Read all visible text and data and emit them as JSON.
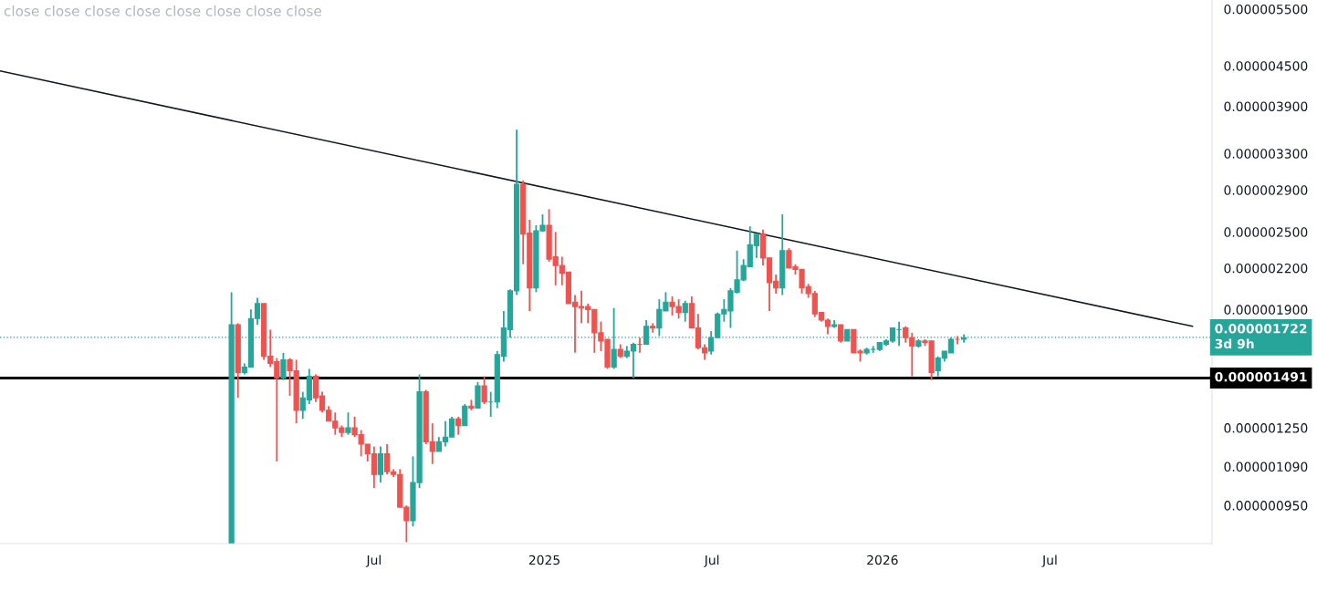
{
  "chart_data": {
    "type": "candlestick",
    "x": [
      "2024-01-29",
      "2024-02-05",
      "2024-02-12",
      "2024-02-19",
      "2024-02-26",
      "2024-03-04",
      "2024-03-11",
      "2024-03-18",
      "2024-03-25",
      "2024-04-01",
      "2024-04-08",
      "2024-04-15",
      "2024-04-22",
      "2024-04-29",
      "2024-05-06",
      "2024-05-13",
      "2024-05-20",
      "2024-05-27",
      "2024-06-03",
      "2024-06-10",
      "2024-06-17",
      "2024-06-24",
      "2024-07-01",
      "2024-07-08",
      "2024-07-15",
      "2024-07-22",
      "2024-07-29",
      "2024-08-05",
      "2024-08-12",
      "2024-08-19",
      "2024-08-26",
      "2024-09-02",
      "2024-09-09",
      "2024-09-16",
      "2024-09-23",
      "2024-09-30",
      "2024-10-07",
      "2024-10-14",
      "2024-10-21",
      "2024-10-28",
      "2024-11-04",
      "2024-11-11",
      "2024-11-18",
      "2024-11-25",
      "2024-12-02",
      "2024-12-09",
      "2024-12-16",
      "2024-12-23",
      "2024-12-30",
      "2025-01-06",
      "2025-01-13",
      "2025-01-20",
      "2025-01-27",
      "2025-02-03",
      "2025-02-10",
      "2025-02-17",
      "2025-02-24",
      "2025-03-03",
      "2025-03-10",
      "2025-03-17",
      "2025-03-24",
      "2025-03-31",
      "2025-04-07",
      "2025-04-14",
      "2025-04-21",
      "2025-04-28",
      "2025-05-05",
      "2025-05-12",
      "2025-05-19",
      "2025-05-26",
      "2025-06-02",
      "2025-06-09",
      "2025-06-16",
      "2025-06-23",
      "2025-06-30",
      "2025-07-07",
      "2025-07-14",
      "2025-07-21",
      "2025-07-28",
      "2025-08-04",
      "2025-08-11",
      "2025-08-18",
      "2025-08-25",
      "2025-09-01",
      "2025-09-08",
      "2025-09-15",
      "2025-09-22",
      "2025-09-29",
      "2025-10-06",
      "2025-10-13",
      "2025-10-20",
      "2025-10-27",
      "2025-11-03",
      "2025-11-10",
      "2025-11-17",
      "2025-11-24",
      "2025-12-01",
      "2025-12-08",
      "2025-12-15",
      "2025-12-22",
      "2025-12-29",
      "2026-01-05",
      "2026-01-12",
      "2026-01-19",
      "2026-01-26",
      "2026-02-02",
      "2026-02-09",
      "2026-02-16",
      "2026-02-23",
      "2026-03-02",
      "2026-03-09",
      "2026-03-16",
      "2026-03-23",
      "2026-03-30"
    ],
    "ohlc": [
      [
        8.32e-07,
        2.02e-06,
        8.32e-07,
        1.8e-06
      ],
      [
        1.8e-06,
        1.81e-06,
        1.39e-06,
        1.52e-06
      ],
      [
        1.52e-06,
        1.57e-06,
        1.51e-06,
        1.55e-06
      ],
      [
        1.55e-06,
        1.9e-06,
        1.55e-06,
        1.84e-06
      ],
      [
        1.84e-06,
        1.98e-06,
        1.8e-06,
        1.94e-06
      ],
      [
        1.94e-06,
        1.94e-06,
        1.59e-06,
        1.61e-06
      ],
      [
        1.61e-06,
        1.77e-06,
        1.55e-06,
        1.57e-06
      ],
      [
        1.58e-06,
        1.6e-06,
        1.11e-06,
        1.49e-06
      ],
      [
        1.49e-06,
        1.63e-06,
        1.48e-06,
        1.59e-06
      ],
      [
        1.59e-06,
        1.6e-06,
        1.4e-06,
        1.53e-06
      ],
      [
        1.53e-06,
        1.59e-06,
        1.27e-06,
        1.33e-06
      ],
      [
        1.33e-06,
        1.42e-06,
        1.29e-06,
        1.39e-06
      ],
      [
        1.38e-06,
        1.54e-06,
        1.36e-06,
        1.5e-06
      ],
      [
        1.5e-06,
        1.51e-06,
        1.37e-06,
        1.39e-06
      ],
      [
        1.4e-06,
        1.42e-06,
        1.32e-06,
        1.33e-06
      ],
      [
        1.33e-06,
        1.35e-06,
        1.28e-06,
        1.28e-06
      ],
      [
        1.28e-06,
        1.32e-06,
        1.22e-06,
        1.25e-06
      ],
      [
        1.25e-06,
        1.26e-06,
        1.21e-06,
        1.23e-06
      ],
      [
        1.23e-06,
        1.32e-06,
        1.22e-06,
        1.25e-06
      ],
      [
        1.25e-06,
        1.3e-06,
        1.21e-06,
        1.22e-06
      ],
      [
        1.22e-06,
        1.24e-06,
        1.13e-06,
        1.18e-06
      ],
      [
        1.18e-06,
        1.18e-06,
        1.11e-06,
        1.14e-06
      ],
      [
        1.14e-06,
        1.17e-06,
        1.01e-06,
        1.06e-06
      ],
      [
        1.06e-06,
        1.17e-06,
        1.03e-06,
        1.14e-06
      ],
      [
        1.14e-06,
        1.18e-06,
        1.06e-06,
        1.07e-06
      ],
      [
        1.07e-06,
        1.08e-06,
        1.05e-06,
        1.06e-06
      ],
      [
        1.06e-06,
        1.08e-06,
        9.44e-07,
        9.44e-07
      ],
      [
        9.44e-07,
        9.5e-07,
        8.34e-07,
        9e-07
      ],
      [
        9e-07,
        1.13e-06,
        8.82e-07,
        1.03e-06
      ],
      [
        1.03e-06,
        1.51e-06,
        1.01e-06,
        1.42e-06
      ],
      [
        1.42e-06,
        1.43e-06,
        1.18e-06,
        1.19e-06
      ],
      [
        1.19e-06,
        1.27e-06,
        1.1e-06,
        1.15e-06
      ],
      [
        1.15e-06,
        1.21e-06,
        1.15e-06,
        1.19e-06
      ],
      [
        1.19e-06,
        1.28e-06,
        1.17e-06,
        1.21e-06
      ],
      [
        1.21e-06,
        1.3e-06,
        1.21e-06,
        1.29e-06
      ],
      [
        1.29e-06,
        1.3e-06,
        1.22e-06,
        1.26e-06
      ],
      [
        1.26e-06,
        1.36e-06,
        1.26e-06,
        1.35e-06
      ],
      [
        1.35e-06,
        1.38e-06,
        1.33e-06,
        1.34e-06
      ],
      [
        1.34e-06,
        1.47e-06,
        1.34e-06,
        1.45e-06
      ],
      [
        1.45e-06,
        1.5e-06,
        1.36e-06,
        1.37e-06
      ],
      [
        1.37e-06,
        1.42e-06,
        1.3e-06,
        1.37e-06
      ],
      [
        1.37e-06,
        1.64e-06,
        1.34e-06,
        1.62e-06
      ],
      [
        1.61e-06,
        1.89e-06,
        1.58e-06,
        1.78e-06
      ],
      [
        1.77e-06,
        2.04e-06,
        1.72e-06,
        2.03e-06
      ],
      [
        2.03e-06,
        3.59e-06,
        2e-06,
        2.96e-06
      ],
      [
        2.96e-06,
        3e-06,
        2.23e-06,
        2.48e-06
      ],
      [
        2.49e-06,
        2.61e-06,
        1.89e-06,
        2.05e-06
      ],
      [
        2.05e-06,
        2.56e-06,
        2.02e-06,
        2.51e-06
      ],
      [
        2.51e-06,
        2.66e-06,
        2.5e-06,
        2.56e-06
      ],
      [
        2.56e-06,
        2.71e-06,
        2.25e-06,
        2.27e-06
      ],
      [
        2.29e-06,
        2.5e-06,
        2.07e-06,
        2.22e-06
      ],
      [
        2.22e-06,
        2.29e-06,
        2.07e-06,
        2.16e-06
      ],
      [
        2.17e-06,
        2.17e-06,
        1.94e-06,
        1.94e-06
      ],
      [
        1.95e-06,
        2e-06,
        1.63e-06,
        1.92e-06
      ],
      [
        1.92e-06,
        2.03e-06,
        1.81e-06,
        1.91e-06
      ],
      [
        1.92e-06,
        1.94e-06,
        1.81e-06,
        1.9e-06
      ],
      [
        1.9e-06,
        1.9e-06,
        1.63e-06,
        1.75e-06
      ],
      [
        1.75e-06,
        1.82e-06,
        1.64e-06,
        1.7e-06
      ],
      [
        1.71e-06,
        1.71e-06,
        1.54e-06,
        1.55e-06
      ],
      [
        1.55e-06,
        1.91e-06,
        1.54e-06,
        1.65e-06
      ],
      [
        1.65e-06,
        1.68e-06,
        1.6e-06,
        1.61e-06
      ],
      [
        1.61e-06,
        1.67e-06,
        1.6e-06,
        1.64e-06
      ],
      [
        1.64e-06,
        1.69e-06,
        1.49e-06,
        1.68e-06
      ],
      [
        1.68e-06,
        1.72e-06,
        1.63e-06,
        1.68e-06
      ],
      [
        1.68e-06,
        1.83e-06,
        1.68e-06,
        1.79e-06
      ],
      [
        1.79e-06,
        1.81e-06,
        1.75e-06,
        1.78e-06
      ],
      [
        1.78e-06,
        1.97e-06,
        1.73e-06,
        1.9e-06
      ],
      [
        1.89e-06,
        2.02e-06,
        1.89e-06,
        1.95e-06
      ],
      [
        1.95e-06,
        1.99e-06,
        1.86e-06,
        1.92e-06
      ],
      [
        1.92e-06,
        1.97e-06,
        1.84e-06,
        1.88e-06
      ],
      [
        1.88e-06,
        1.96e-06,
        1.82e-06,
        1.94e-06
      ],
      [
        1.94e-06,
        1.99e-06,
        1.78e-06,
        1.78e-06
      ],
      [
        1.78e-06,
        1.87e-06,
        1.65e-06,
        1.66e-06
      ],
      [
        1.66e-06,
        1.68e-06,
        1.59e-06,
        1.63e-06
      ],
      [
        1.64e-06,
        1.76e-06,
        1.62e-06,
        1.72e-06
      ],
      [
        1.72e-06,
        1.88e-06,
        1.72e-06,
        1.87e-06
      ],
      [
        1.87e-06,
        1.97e-06,
        1.82e-06,
        1.9e-06
      ],
      [
        1.89e-06,
        2.05e-06,
        1.78e-06,
        2.03e-06
      ],
      [
        2.02e-06,
        2.34e-06,
        2.01e-06,
        2.11e-06
      ],
      [
        2.11e-06,
        2.27e-06,
        2.1e-06,
        2.22e-06
      ],
      [
        2.21e-06,
        2.55e-06,
        2.21e-06,
        2.39e-06
      ],
      [
        2.38e-06,
        2.48e-06,
        2.28e-06,
        2.48e-06
      ],
      [
        2.48e-06,
        2.52e-06,
        2.22e-06,
        2.28e-06
      ],
      [
        2.28e-06,
        2.28e-06,
        1.89e-06,
        2.09e-06
      ],
      [
        2.1e-06,
        2.15e-06,
        2.01e-06,
        2.05e-06
      ],
      [
        2.05e-06,
        2.66e-06,
        2e-06,
        2.34e-06
      ],
      [
        2.34e-06,
        2.36e-06,
        2.2e-06,
        2.2e-06
      ],
      [
        2.21e-06,
        2.23e-06,
        2.15e-06,
        2.19e-06
      ],
      [
        2.19e-06,
        2.19e-06,
        2.01e-06,
        2.05e-06
      ],
      [
        2.06e-06,
        2.08e-06,
        1.98e-06,
        2.01e-06
      ],
      [
        2.01e-06,
        2.03e-06,
        1.85e-06,
        1.87e-06
      ],
      [
        1.88e-06,
        1.88e-06,
        1.82e-06,
        1.83e-06
      ],
      [
        1.83e-06,
        1.84e-06,
        1.74e-06,
        1.79e-06
      ],
      [
        1.79e-06,
        1.83e-06,
        1.78e-06,
        1.8e-06
      ],
      [
        1.8e-06,
        1.8e-06,
        1.69e-06,
        1.7e-06
      ],
      [
        1.7e-06,
        1.77e-06,
        1.7e-06,
        1.77e-06
      ],
      [
        1.77e-06,
        1.77e-06,
        1.63e-06,
        1.63e-06
      ],
      [
        1.64e-06,
        1.65e-06,
        1.58e-06,
        1.63e-06
      ],
      [
        1.63e-06,
        1.66e-06,
        1.62e-06,
        1.65e-06
      ],
      [
        1.65e-06,
        1.67e-06,
        1.63e-06,
        1.65e-06
      ],
      [
        1.65e-06,
        1.69e-06,
        1.64e-06,
        1.69e-06
      ],
      [
        1.68e-06,
        1.71e-06,
        1.67e-06,
        1.7e-06
      ],
      [
        1.7e-06,
        1.78e-06,
        1.69e-06,
        1.78e-06
      ],
      [
        1.77e-06,
        1.82e-06,
        1.67e-06,
        1.77e-06
      ],
      [
        1.78e-06,
        1.79e-06,
        1.69e-06,
        1.72e-06
      ],
      [
        1.72e-06,
        1.75e-06,
        1.5e-06,
        1.67e-06
      ],
      [
        1.67e-06,
        1.71e-06,
        1.66e-06,
        1.7e-06
      ],
      [
        1.7e-06,
        1.71e-06,
        1.67e-06,
        1.69e-06
      ],
      [
        1.7e-06,
        1.7e-06,
        1.48e-06,
        1.52e-06
      ],
      [
        1.53e-06,
        1.61e-06,
        1.5e-06,
        1.6e-06
      ],
      [
        1.6e-06,
        1.64e-06,
        1.58e-06,
        1.64e-06
      ],
      [
        1.63e-06,
        1.72e-06,
        1.63e-06,
        1.71e-06
      ],
      [
        1.71e-06,
        1.73e-06,
        1.68e-06,
        1.71e-06
      ],
      [
        1.71e-06,
        1.74e-06,
        1.69e-06,
        1.72e-06
      ]
    ],
    "colors": [
      "#26a69a",
      "#ef5350",
      "#26a69a",
      "#26a69a",
      "#26a69a",
      "#ef5350",
      "#ef5350",
      "#ef5350",
      "#26a69a",
      "#ef5350",
      "#ef5350",
      "#26a69a",
      "#26a69a",
      "#ef5350",
      "#ef5350",
      "#ef5350",
      "#ef5350",
      "#ef5350",
      "#26a69a",
      "#ef5350",
      "#ef5350",
      "#ef5350",
      "#ef5350",
      "#26a69a",
      "#ef5350",
      "#ef5350",
      "#ef5350",
      "#ef5350",
      "#26a69a",
      "#26a69a",
      "#ef5350",
      "#ef5350",
      "#26a69a",
      "#26a69a",
      "#26a69a",
      "#ef5350",
      "#26a69a",
      "#ef5350",
      "#26a69a",
      "#ef5350",
      "#26a69a",
      "#26a69a",
      "#26a69a",
      "#26a69a",
      "#26a69a",
      "#ef5350",
      "#ef5350",
      "#26a69a",
      "#26a69a",
      "#ef5350",
      "#ef5350",
      "#ef5350",
      "#ef5350",
      "#ef5350",
      "#ef5350",
      "#ef5350",
      "#ef5350",
      "#ef5350",
      "#ef5350",
      "#26a69a",
      "#ef5350",
      "#26a69a",
      "#26a69a",
      "#ef5350",
      "#26a69a",
      "#ef5350",
      "#26a69a",
      "#26a69a",
      "#ef5350",
      "#ef5350",
      "#26a69a",
      "#ef5350",
      "#ef5350",
      "#ef5350",
      "#26a69a",
      "#26a69a",
      "#26a69a",
      "#26a69a",
      "#26a69a",
      "#26a69a",
      "#26a69a",
      "#26a69a",
      "#ef5350",
      "#ef5350",
      "#ef5350",
      "#26a69a",
      "#ef5350",
      "#ef5350",
      "#ef5350",
      "#ef5350",
      "#ef5350",
      "#ef5350",
      "#ef5350",
      "#26a69a",
      "#ef5350",
      "#26a69a",
      "#ef5350",
      "#ef5350",
      "#26a69a",
      "#26a69a",
      "#26a69a",
      "#26a69a",
      "#26a69a",
      "#26a69a",
      "#ef5350",
      "#ef5350",
      "#26a69a",
      "#ef5350",
      "#ef5350",
      "#26a69a",
      "#26a69a",
      "#26a69a",
      "#ef5350",
      "#26a69a"
    ],
    "series": [
      {
        "type": "line",
        "x": [
          "2023-05-24",
          "2026-12-02"
        ],
        "values": [
          4.42e-06,
          1.79e-06
        ],
        "color": "#131722"
      }
    ],
    "log": "y",
    "xlim": [
      "2023-05-24",
      "2026-12-23"
    ],
    "ylim": [
      8.3e-07,
      5.68e-06
    ],
    "xticks": [
      {
        "value": "2024-07-01",
        "label": "Jul"
      },
      {
        "value": "2025-01-01",
        "label": "2025"
      },
      {
        "value": "2025-07-01",
        "label": "Jul"
      },
      {
        "value": "2026-01-01",
        "label": "2026"
      },
      {
        "value": "2026-07-01",
        "label": "Jul"
      }
    ],
    "yticks": [
      {
        "value": 9.5e-07,
        "label": "0.000000950"
      },
      {
        "value": 1.09e-06,
        "label": "0.000001090"
      },
      {
        "value": 1.25e-06,
        "label": "0.000001250"
      },
      {
        "value": 1.9e-06,
        "label": "0.000001900"
      },
      {
        "value": 2.2e-06,
        "label": "0.000002200"
      },
      {
        "value": 2.5e-06,
        "label": "0.000002500"
      },
      {
        "value": 2.9e-06,
        "label": "0.000002900"
      },
      {
        "value": 3.3e-06,
        "label": "0.000003300"
      },
      {
        "value": 3.9e-06,
        "label": "0.000003900"
      },
      {
        "value": 4.5e-06,
        "label": "0.000004500"
      },
      {
        "value": 5.5e-06,
        "label": "0.000005500"
      }
    ],
    "ref_lines": [
      {
        "axis": "y",
        "value": 1.491e-06,
        "label": "0.000001491",
        "color": "#000000",
        "line_style": "solid"
      },
      {
        "axis": "y",
        "value": 1.722e-06,
        "label": "0.000001722\n3d 9h",
        "color": "#26a69a",
        "line_style": "dotted"
      }
    ],
    "annotations": [
      "close close close close close close close close"
    ]
  }
}
